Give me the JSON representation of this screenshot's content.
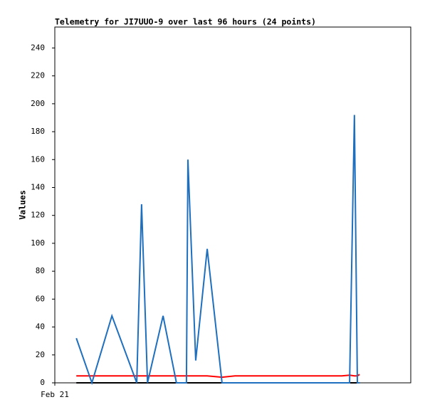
{
  "chart_data": {
    "type": "line",
    "title": "Telemetry for JI7UUO-9 over last 96 hours (24 points)",
    "y_label": "Values",
    "x": [
      5.8,
      10.0,
      15.4,
      22.1,
      23.4,
      25.0,
      29.2,
      32.8,
      35.5,
      35.9,
      38.0,
      41.1,
      45.1,
      48.6,
      54.3,
      60.1,
      65.9,
      70.6,
      74.5,
      77.4,
      79.5,
      80.8,
      81.6,
      82.2
    ],
    "series": [
      {
        "color": "#000000",
        "values": [
          0,
          0,
          0,
          0,
          0,
          0,
          0,
          0,
          0,
          0,
          0,
          0,
          0,
          0,
          0,
          0,
          0,
          0,
          0,
          0,
          0,
          0,
          0,
          0
        ]
      },
      {
        "color": "#ff0000",
        "values": [
          5,
          5,
          5,
          5,
          5,
          5,
          5,
          5,
          5,
          5,
          5,
          5,
          4,
          5,
          5,
          5,
          5,
          5,
          5,
          5,
          5.5,
          5,
          5,
          6
        ]
      },
      {
        "color": "#1f6fbf",
        "values": [
          32,
          0,
          48,
          0,
          128,
          0,
          48,
          0,
          0,
          160,
          16,
          96,
          0,
          0,
          0,
          0,
          0,
          0,
          0,
          0,
          0,
          192,
          0,
          0
        ]
      }
    ],
    "xlim": [
      0,
      96
    ],
    "xticks": [
      {
        "value": 0,
        "label": "Feb 21"
      }
    ],
    "ylim": [
      0,
      255
    ],
    "yticks": [
      0,
      20,
      40,
      60,
      80,
      100,
      120,
      140,
      160,
      180,
      200,
      220,
      240
    ]
  }
}
